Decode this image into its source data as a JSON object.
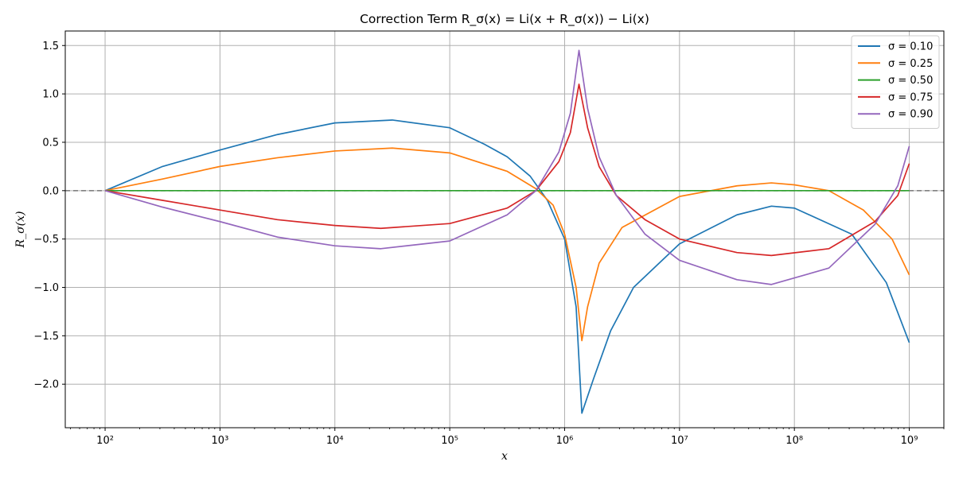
{
  "chart_data": {
    "type": "line",
    "title": "Correction Term R_σ(x) = Li(x + R_σ(x)) − Li(x)",
    "xlabel": "x",
    "ylabel": "R_σ(x)",
    "xscale": "log",
    "xlim": [
      45,
      2000000000
    ],
    "ylim": [
      -2.45,
      1.65
    ],
    "x_ticks": [
      {
        "value": 100,
        "label": "10²"
      },
      {
        "value": 1000,
        "label": "10³"
      },
      {
        "value": 10000,
        "label": "10⁴"
      },
      {
        "value": 100000,
        "label": "10⁵"
      },
      {
        "value": 1000000,
        "label": "10⁶"
      },
      {
        "value": 10000000,
        "label": "10⁷"
      },
      {
        "value": 100000000,
        "label": "10⁸"
      },
      {
        "value": 1000000000,
        "label": "10⁹"
      }
    ],
    "y_ticks": [
      {
        "value": 1.5,
        "label": "1.5"
      },
      {
        "value": 1.0,
        "label": "1.0"
      },
      {
        "value": 0.5,
        "label": "0.5"
      },
      {
        "value": 0.0,
        "label": "0.0"
      },
      {
        "value": -0.5,
        "label": "−0.5"
      },
      {
        "value": -1.0,
        "label": "−1.0"
      },
      {
        "value": -1.5,
        "label": "−1.5"
      },
      {
        "value": -2.0,
        "label": "−2.0"
      }
    ],
    "grid": true,
    "legend_position": "top-right",
    "reference_line": {
      "y": 0,
      "style": "dashed",
      "color": "#808080"
    },
    "series": [
      {
        "name": "σ = 0.10",
        "color": "#1f77b4",
        "points": [
          [
            100,
            0
          ],
          [
            316,
            0.25
          ],
          [
            1000,
            0.42
          ],
          [
            3162,
            0.58
          ],
          [
            10000,
            0.7
          ],
          [
            31623,
            0.73
          ],
          [
            100000,
            0.65
          ],
          [
            200000,
            0.48
          ],
          [
            316228,
            0.35
          ],
          [
            501187,
            0.15
          ],
          [
            707946,
            -0.1
          ],
          [
            1000000,
            -0.5
          ],
          [
            1258925,
            -1.2
          ],
          [
            1412538,
            -2.3
          ],
          [
            1778279,
            -1.95
          ],
          [
            2511886,
            -1.45
          ],
          [
            3981072,
            -1.0
          ],
          [
            10000000,
            -0.55
          ],
          [
            31622777,
            -0.25
          ],
          [
            63095734,
            -0.16
          ],
          [
            100000000,
            -0.18
          ],
          [
            316227766,
            -0.45
          ],
          [
            630957344,
            -0.95
          ],
          [
            1000000000,
            -1.57
          ]
        ]
      },
      {
        "name": "σ = 0.25",
        "color": "#ff7f0e",
        "points": [
          [
            100,
            0
          ],
          [
            316,
            0.12
          ],
          [
            1000,
            0.25
          ],
          [
            3162,
            0.34
          ],
          [
            10000,
            0.41
          ],
          [
            31623,
            0.44
          ],
          [
            100000,
            0.39
          ],
          [
            316228,
            0.2
          ],
          [
            562341,
            0.02
          ],
          [
            794328,
            -0.15
          ],
          [
            1000000,
            -0.45
          ],
          [
            1258925,
            -1.0
          ],
          [
            1412538,
            -1.55
          ],
          [
            1584893,
            -1.2
          ],
          [
            1995262,
            -0.75
          ],
          [
            3162278,
            -0.38
          ],
          [
            10000000,
            -0.06
          ],
          [
            31622777,
            0.05
          ],
          [
            63095734,
            0.08
          ],
          [
            100000000,
            0.06
          ],
          [
            199526231,
            0.0
          ],
          [
            398107171,
            -0.2
          ],
          [
            707945784,
            -0.5
          ],
          [
            1000000000,
            -0.87
          ]
        ]
      },
      {
        "name": "σ = 0.50",
        "color": "#2ca02c",
        "points": [
          [
            100,
            0
          ],
          [
            1000000000,
            0
          ]
        ]
      },
      {
        "name": "σ = 0.75",
        "color": "#d62728",
        "points": [
          [
            100,
            0
          ],
          [
            316,
            -0.1
          ],
          [
            1000,
            -0.2
          ],
          [
            3162,
            -0.3
          ],
          [
            10000,
            -0.36
          ],
          [
            25119,
            -0.39
          ],
          [
            100000,
            -0.34
          ],
          [
            316228,
            -0.18
          ],
          [
            562341,
            0.0
          ],
          [
            891251,
            0.3
          ],
          [
            1122018,
            0.6
          ],
          [
            1333521,
            1.1
          ],
          [
            1584893,
            0.65
          ],
          [
            1995262,
            0.25
          ],
          [
            2818383,
            -0.05
          ],
          [
            5011872,
            -0.3
          ],
          [
            10000000,
            -0.5
          ],
          [
            31622777,
            -0.64
          ],
          [
            63095734,
            -0.67
          ],
          [
            199526231,
            -0.6
          ],
          [
            501187234,
            -0.32
          ],
          [
            794328235,
            -0.05
          ],
          [
            1000000000,
            0.28
          ]
        ]
      },
      {
        "name": "σ = 0.90",
        "color": "#9467bd",
        "points": [
          [
            100,
            0
          ],
          [
            316,
            -0.17
          ],
          [
            1000,
            -0.32
          ],
          [
            3162,
            -0.48
          ],
          [
            10000,
            -0.57
          ],
          [
            25119,
            -0.6
          ],
          [
            100000,
            -0.52
          ],
          [
            316228,
            -0.25
          ],
          [
            562341,
            0.0
          ],
          [
            891251,
            0.4
          ],
          [
            1122018,
            0.8
          ],
          [
            1333521,
            1.45
          ],
          [
            1584893,
            0.85
          ],
          [
            1995262,
            0.35
          ],
          [
            2818383,
            -0.05
          ],
          [
            5011872,
            -0.45
          ],
          [
            10000000,
            -0.72
          ],
          [
            31622777,
            -0.92
          ],
          [
            63095734,
            -0.97
          ],
          [
            199526231,
            -0.8
          ],
          [
            501187234,
            -0.35
          ],
          [
            794328235,
            0.05
          ],
          [
            1000000000,
            0.46
          ]
        ]
      }
    ]
  }
}
